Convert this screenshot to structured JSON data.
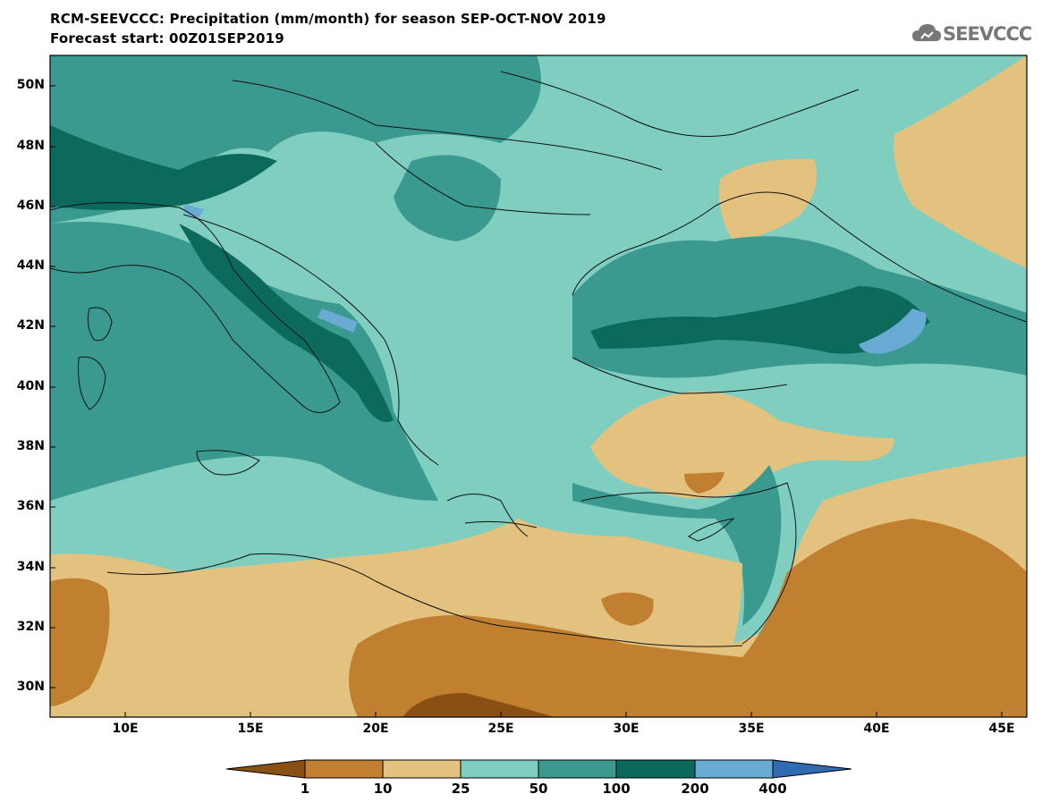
{
  "title": {
    "line1": "RCM-SEEVCCC: Precipitation (mm/month) for season SEP-OCT-NOV 2019",
    "line2": "Forecast start: 00Z01SEP2019"
  },
  "logo": {
    "text": "SEEVCCC",
    "icon": "cloud-icon"
  },
  "map": {
    "region": "Eastern Mediterranean / South-East Europe",
    "lon_range": [
      7,
      46
    ],
    "lat_range": [
      29,
      51
    ],
    "lat_ticks": [
      "50N",
      "48N",
      "46N",
      "44N",
      "42N",
      "40N",
      "38N",
      "36N",
      "34N",
      "32N",
      "30N"
    ],
    "lon_ticks": [
      "10E",
      "15E",
      "20E",
      "25E",
      "30E",
      "35E",
      "40E",
      "45E"
    ]
  },
  "colorbar": {
    "labels": [
      "1",
      "10",
      "25",
      "50",
      "100",
      "200",
      "400"
    ],
    "colors": [
      "#8a4f12",
      "#c08030",
      "#e3c27f",
      "#7fcec0",
      "#3a9a90",
      "#0b6a5c",
      "#6aabd6",
      "#2f6bb0"
    ]
  }
}
